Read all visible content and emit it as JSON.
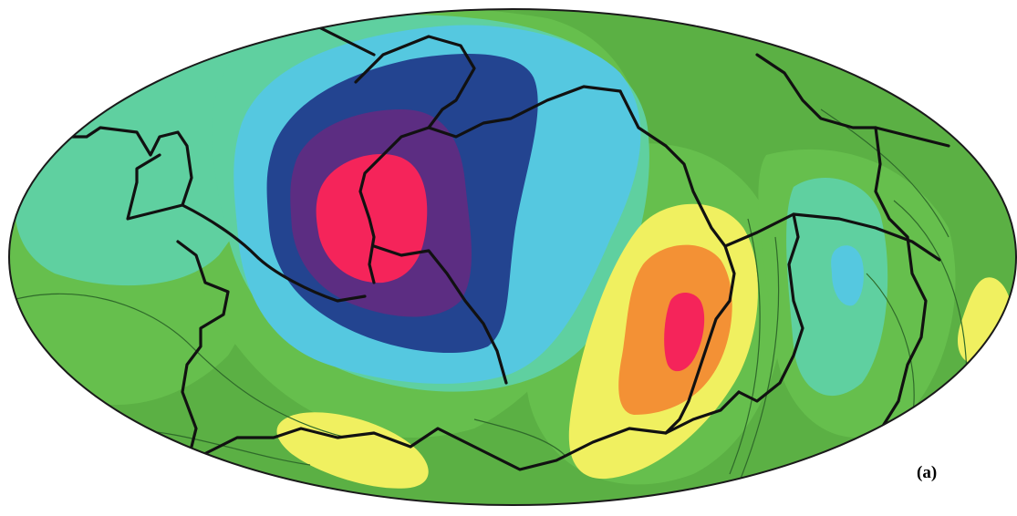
{
  "figure": {
    "panel_label": "(a)"
  },
  "palette": {
    "background_green": "#5bb044",
    "mid_green": "#66bf4d",
    "teal_green": "#5fd0a0",
    "light_blue": "#55c8e0",
    "dark_blue": "#234490",
    "purple": "#5c2d82",
    "magenta_red": "#f5245a",
    "yellow": "#f0f060",
    "orange": "#f39135",
    "plate_boundary": "#111111",
    "contour_line": "#2f6a2a"
  }
}
